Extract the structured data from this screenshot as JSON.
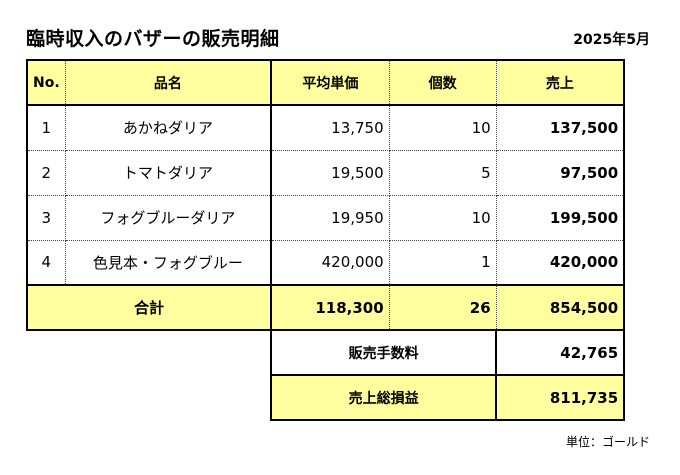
{
  "title": "臨時収入のバザーの販売明細",
  "date": "2025年5月",
  "columns": {
    "no": "No.",
    "name": "品名",
    "price": "平均単価",
    "qty": "個数",
    "sales": "売上"
  },
  "rows": [
    {
      "no": "1",
      "name": "あかねダリア",
      "price": "13,750",
      "qty": "10",
      "sales": "137,500"
    },
    {
      "no": "2",
      "name": "トマトダリア",
      "price": "19,500",
      "qty": "5",
      "sales": "97,500"
    },
    {
      "no": "3",
      "name": "フォグブルーダリア",
      "price": "19,950",
      "qty": "10",
      "sales": "199,500"
    },
    {
      "no": "4",
      "name": "色見本・フォグブルー",
      "price": "420,000",
      "qty": "1",
      "sales": "420,000"
    }
  ],
  "total": {
    "label": "合計",
    "price": "118,300",
    "qty": "26",
    "sales": "854,500"
  },
  "fee": {
    "label": "販売手数料",
    "value": "42,765"
  },
  "net": {
    "label": "売上総損益",
    "value": "811,735"
  },
  "unit_note": "単位：ゴールド",
  "colors": {
    "highlight": "#ffffa0"
  }
}
